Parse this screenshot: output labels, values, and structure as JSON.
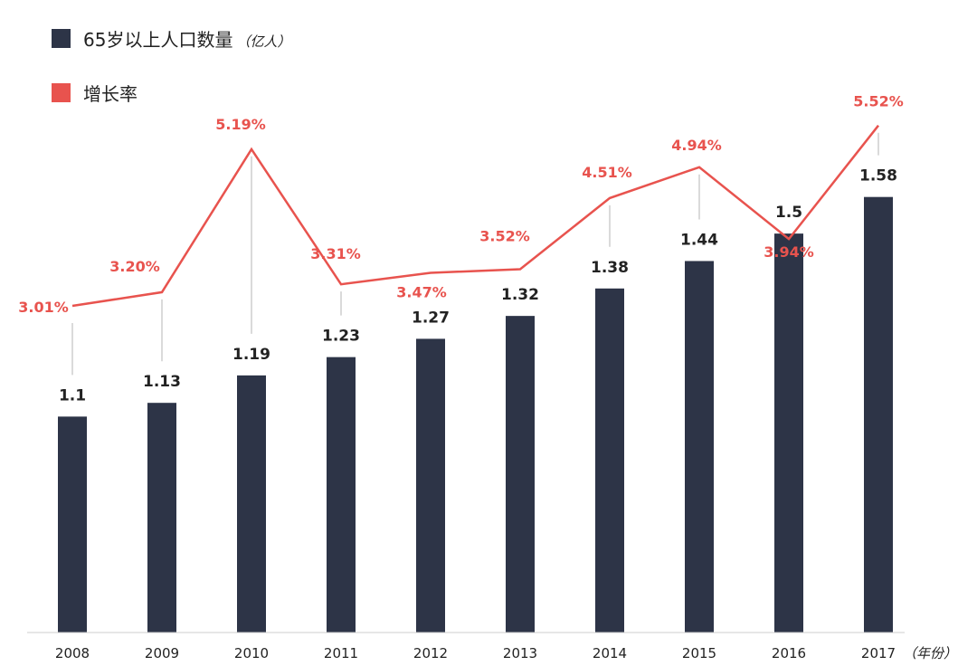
{
  "chart_data": {
    "type": "bar",
    "categories": [
      "2008",
      "2009",
      "2010",
      "2011",
      "2012",
      "2013",
      "2014",
      "2015",
      "2016",
      "2017"
    ],
    "series": [
      {
        "name": "65岁以上人口数量（亿人）",
        "type": "bar",
        "values": [
          1.1,
          1.13,
          1.19,
          1.23,
          1.27,
          1.32,
          1.38,
          1.44,
          1.5,
          1.58
        ],
        "labels": [
          "1.1",
          "1.13",
          "1.19",
          "1.23",
          "1.27",
          "1.32",
          "1.38",
          "1.44",
          "1.5",
          "1.58"
        ],
        "color": "#2d3447"
      },
      {
        "name": "增长率",
        "type": "line",
        "values": [
          3.01,
          3.2,
          5.19,
          3.31,
          3.47,
          3.52,
          4.51,
          4.94,
          3.94,
          5.52
        ],
        "labels": [
          "3.01%",
          "3.20%",
          "5.19%",
          "3.31%",
          "3.47%",
          "3.52%",
          "4.51%",
          "4.94%",
          "3.94%",
          "5.52%"
        ],
        "color": "#e8534e"
      }
    ],
    "x_unit": "（年份）",
    "legend": {
      "placement": "top-left",
      "items": [
        {
          "label": "65岁以上人口数量",
          "unit": "（亿人）",
          "color": "#2d3447"
        },
        {
          "label": "增长率",
          "color": "#e8534e"
        }
      ]
    },
    "grid": false
  }
}
